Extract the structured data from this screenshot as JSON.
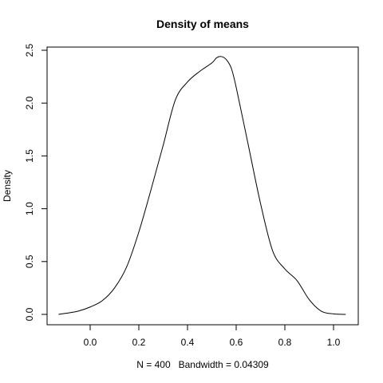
{
  "chart_data": {
    "type": "line",
    "title": "Density of means",
    "ylabel": "Density",
    "xlabel": "N = 400   Bandwidth = 0.04309",
    "xlim": [
      -0.15,
      1.08
    ],
    "ylim": [
      0,
      2.5
    ],
    "x_ticks": [
      0.0,
      0.2,
      0.4,
      0.6,
      0.8,
      1.0
    ],
    "x_tick_labels": [
      "0.0",
      "0.2",
      "0.4",
      "0.6",
      "0.8",
      "1.0"
    ],
    "y_ticks": [
      0.0,
      0.5,
      1.0,
      1.5,
      2.0,
      2.5
    ],
    "y_tick_labels": [
      "0.0",
      "0.5",
      "1.0",
      "1.5",
      "2.0",
      "2.5"
    ],
    "grid": false,
    "series": [
      {
        "x": [
          -0.13,
          -0.1,
          -0.05,
          0.0,
          0.05,
          0.1,
          0.15,
          0.2,
          0.25,
          0.3,
          0.35,
          0.4,
          0.45,
          0.5,
          0.52,
          0.54,
          0.56,
          0.58,
          0.6,
          0.65,
          0.7,
          0.75,
          0.8,
          0.85,
          0.9,
          0.95,
          1.0,
          1.05
        ],
        "y": [
          0.0,
          0.01,
          0.03,
          0.07,
          0.13,
          0.25,
          0.45,
          0.78,
          1.18,
          1.6,
          2.03,
          2.2,
          2.3,
          2.38,
          2.43,
          2.44,
          2.41,
          2.33,
          2.15,
          1.6,
          1.05,
          0.6,
          0.43,
          0.32,
          0.14,
          0.03,
          0.005,
          0.0
        ]
      }
    ]
  }
}
